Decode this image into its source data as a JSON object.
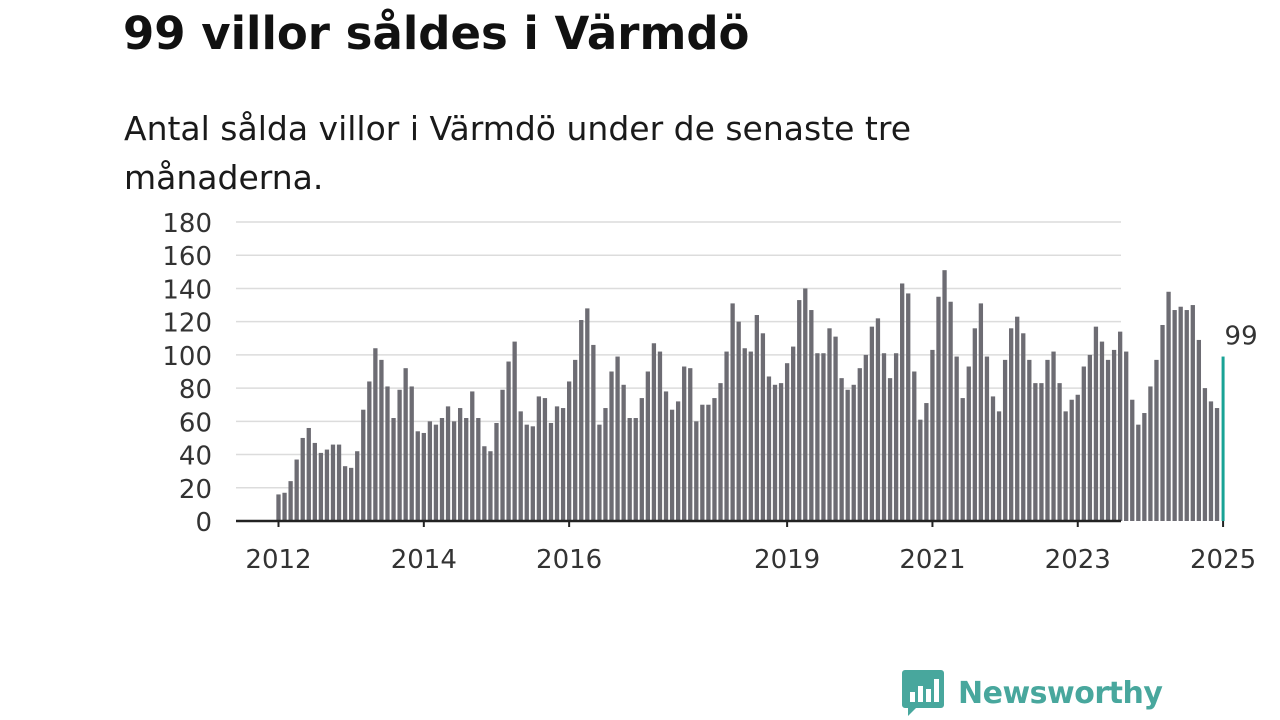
{
  "title": "99 villor såldes i Värmdö",
  "subtitle": "Antal sålda villor i Värmdö under de senaste tre månaderna.",
  "brand": {
    "name": "Newsworthy",
    "color": "#48a79d"
  },
  "colors": {
    "bar": "#6d6c73",
    "highlight": "#1aa396",
    "grid": "#dcdcdc",
    "axis": "#222222"
  },
  "chart_data": {
    "type": "bar",
    "start": "2012-01",
    "ylim": [
      0,
      180
    ],
    "yticks": [
      0,
      20,
      40,
      60,
      80,
      100,
      120,
      140,
      160,
      180
    ],
    "xticks": [
      "2012",
      "2014",
      "2016",
      "2019",
      "2021",
      "2023",
      "2025"
    ],
    "grid": true,
    "highlight_label": "99",
    "values": [
      16,
      17,
      24,
      37,
      50,
      56,
      47,
      41,
      43,
      46,
      46,
      33,
      32,
      42,
      67,
      84,
      104,
      97,
      81,
      62,
      79,
      92,
      81,
      54,
      53,
      60,
      58,
      62,
      69,
      60,
      68,
      62,
      78,
      62,
      45,
      42,
      59,
      79,
      96,
      108,
      66,
      58,
      57,
      75,
      74,
      59,
      69,
      68,
      84,
      97,
      121,
      128,
      106,
      58,
      68,
      90,
      99,
      82,
      62,
      62,
      74,
      90,
      107,
      102,
      78,
      67,
      72,
      93,
      92,
      60,
      70,
      70,
      74,
      83,
      102,
      131,
      120,
      104,
      102,
      124,
      113,
      87,
      82,
      83,
      95,
      105,
      133,
      140,
      127,
      101,
      101,
      116,
      111,
      86,
      79,
      82,
      92,
      100,
      117,
      122,
      101,
      86,
      101,
      143,
      137,
      90,
      61,
      71,
      103,
      135,
      151,
      132,
      99,
      74,
      93,
      116,
      131,
      99,
      75,
      66,
      97,
      116,
      123,
      113,
      97,
      83,
      83,
      97,
      102,
      83,
      66,
      73,
      76,
      93,
      100,
      117,
      108,
      97,
      103,
      114,
      102,
      73,
      58,
      65,
      81,
      97,
      118,
      138,
      127,
      129,
      127,
      130,
      109,
      80,
      72,
      68,
      99
    ]
  }
}
